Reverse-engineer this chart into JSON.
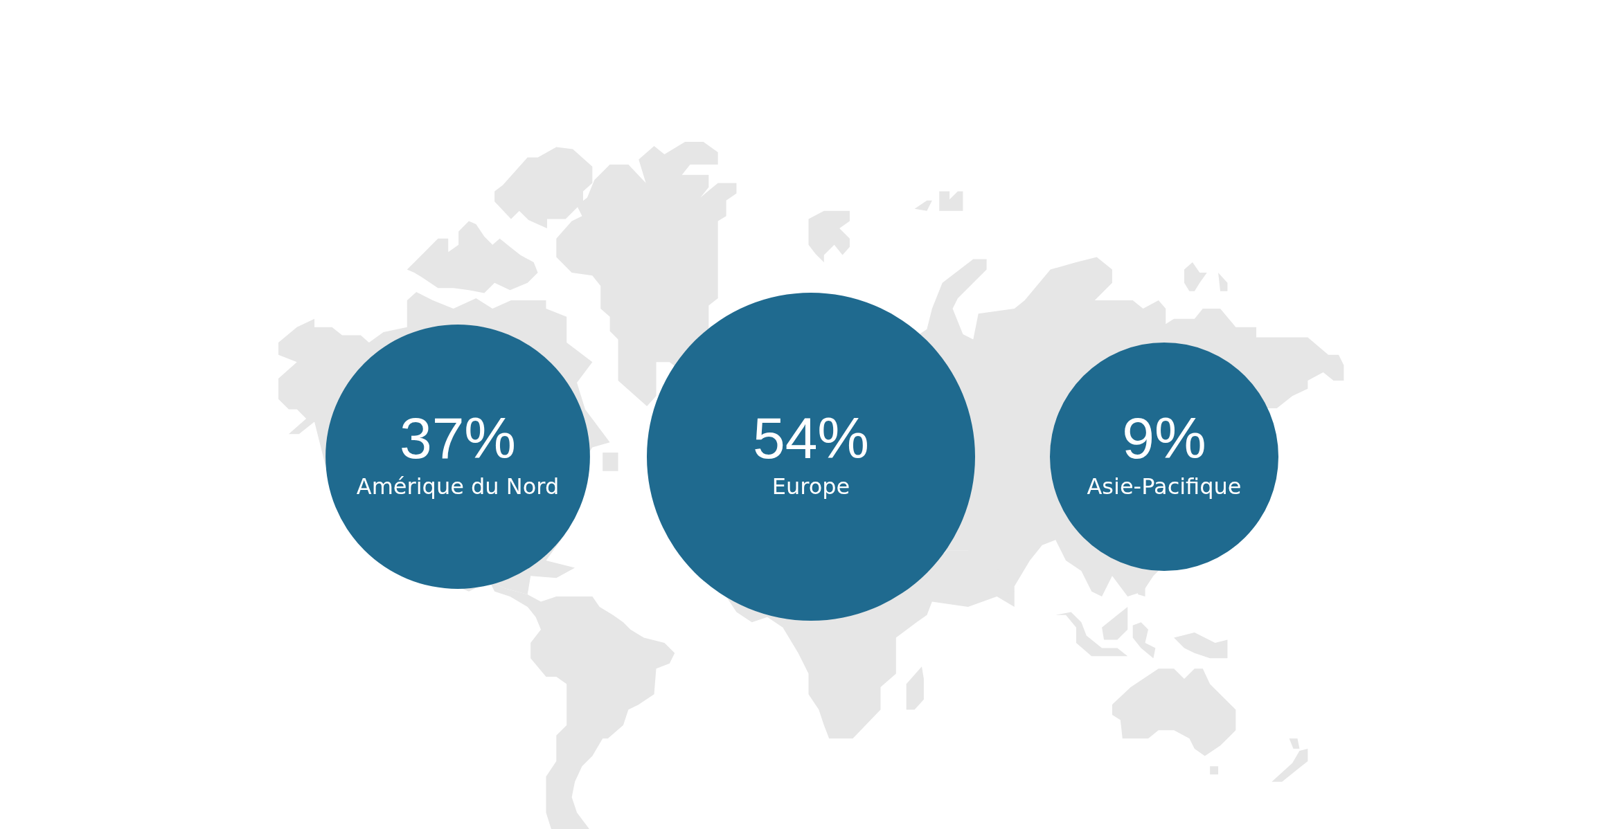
{
  "chart_data": {
    "type": "other",
    "categories": [
      "Amérique du Nord",
      "Europe",
      "Asie-Pacifique"
    ],
    "values": [
      37,
      54,
      9
    ],
    "value_labels": [
      "37%",
      "54%",
      "9%"
    ],
    "color": "#1f6a8f"
  }
}
